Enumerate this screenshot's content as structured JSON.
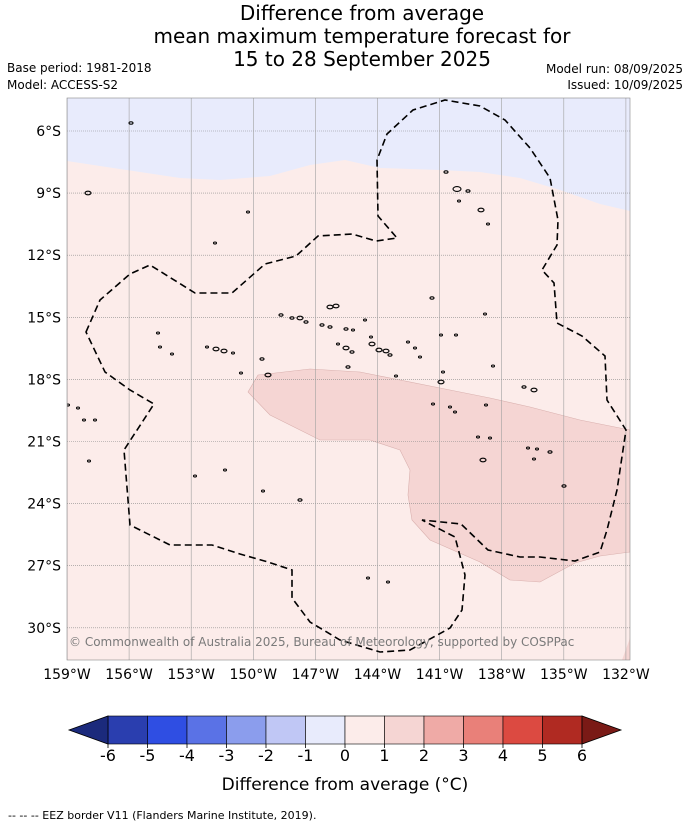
{
  "header": {
    "title_lines": [
      "Difference from average",
      "mean maximum temperature forecast for",
      "15 to 28 September 2025"
    ],
    "base_period": "Base period: 1981-2018",
    "model": "Model: ACCESS-S2",
    "model_run": "Model run: 08/09/2025",
    "issued": "Issued: 10/09/2025"
  },
  "map": {
    "lat_labels": [
      "6°S",
      "9°S",
      "12°S",
      "15°S",
      "18°S",
      "21°S",
      "24°S",
      "27°S",
      "30°S"
    ],
    "lon_labels": [
      "159°W",
      "156°W",
      "153°W",
      "150°W",
      "147°W",
      "144°W",
      "141°W",
      "138°W",
      "135°W",
      "132°W"
    ],
    "copyright": "© Commonwealth of Australia 2025, Bureau of Meteorology, supported by COSPPac",
    "region_colors": {
      "below_0_to_minus_1": "#e8ebfc",
      "0_to_1": "#fcecea",
      "1_to_2": "#f5d5d3"
    }
  },
  "colorbar": {
    "ticks": [
      "-6",
      "-5",
      "-4",
      "-3",
      "-2",
      "-1",
      "0",
      "1",
      "2",
      "3",
      "4",
      "5",
      "6"
    ],
    "colors": [
      "#2a3eaf",
      "#2f4ee3",
      "#5a72e6",
      "#8b9ded",
      "#c0c7f5",
      "#e8ebfc",
      "#fcecea",
      "#f5d5d3",
      "#efaaa6",
      "#e98079",
      "#dc4a41",
      "#b02a22"
    ],
    "under_color": "#1b2a7c",
    "over_color": "#7a1a16",
    "title": "Difference from average (°C)"
  },
  "footnote": "--  --  -- EEZ border V11 (Flanders Marine Institute, 2019)."
}
